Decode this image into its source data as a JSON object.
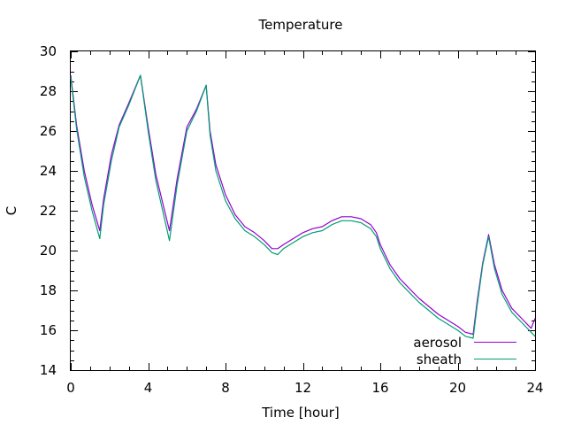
{
  "chart_data": {
    "type": "line",
    "title": "Temperature",
    "xlabel": "Time [hour]",
    "ylabel": "C",
    "xlim": [
      0,
      24
    ],
    "ylim": [
      14,
      30
    ],
    "xticks": [
      0,
      4,
      8,
      12,
      16,
      20,
      24
    ],
    "yticks": [
      14,
      16,
      18,
      20,
      22,
      24,
      26,
      28,
      30
    ],
    "grid": false,
    "legend_position": "bottom-right",
    "series": [
      {
        "name": "aerosol",
        "color": "#9400d3",
        "x": [
          0,
          0.3,
          0.7,
          1.1,
          1.5,
          1.7,
          2.1,
          2.5,
          3.0,
          3.6,
          4.0,
          4.4,
          4.8,
          5.1,
          5.5,
          6.0,
          6.5,
          7.0,
          7.2,
          7.5,
          8.0,
          8.5,
          9.0,
          9.5,
          10.0,
          10.4,
          10.7,
          11.0,
          11.5,
          12.0,
          12.5,
          13.0,
          13.5,
          14.0,
          14.5,
          15.0,
          15.5,
          15.8,
          16.0,
          16.5,
          17.0,
          17.5,
          18.0,
          18.5,
          19.0,
          19.5,
          20.0,
          20.4,
          20.8,
          21.0,
          21.3,
          21.6,
          21.9,
          22.3,
          22.8,
          23.3,
          23.8,
          24.0
        ],
        "y": [
          28.8,
          26.3,
          24.0,
          22.3,
          21.0,
          22.6,
          24.8,
          26.3,
          27.4,
          28.8,
          26.2,
          23.8,
          22.2,
          21.0,
          23.6,
          26.2,
          27.1,
          28.3,
          26.0,
          24.3,
          22.8,
          21.8,
          21.2,
          20.9,
          20.5,
          20.1,
          20.1,
          20.3,
          20.6,
          20.9,
          21.1,
          21.2,
          21.5,
          21.7,
          21.7,
          21.6,
          21.3,
          20.9,
          20.3,
          19.3,
          18.6,
          18.1,
          17.6,
          17.2,
          16.8,
          16.5,
          16.2,
          15.9,
          15.8,
          17.4,
          19.4,
          20.8,
          19.3,
          18.0,
          17.1,
          16.6,
          16.1,
          16.6
        ]
      },
      {
        "name": "sheath",
        "color": "#009e73",
        "x": [
          0,
          0.3,
          0.7,
          1.1,
          1.5,
          1.7,
          2.1,
          2.5,
          3.0,
          3.6,
          4.0,
          4.4,
          4.8,
          5.1,
          5.5,
          6.0,
          6.5,
          7.0,
          7.2,
          7.5,
          8.0,
          8.5,
          9.0,
          9.5,
          10.0,
          10.4,
          10.7,
          11.0,
          11.5,
          12.0,
          12.5,
          13.0,
          13.5,
          14.0,
          14.5,
          15.0,
          15.5,
          15.8,
          16.0,
          16.5,
          17.0,
          17.5,
          18.0,
          18.5,
          19.0,
          19.5,
          20.0,
          20.4,
          20.8,
          21.0,
          21.3,
          21.6,
          21.9,
          22.3,
          22.8,
          23.3,
          23.8,
          24.0
        ],
        "y": [
          28.7,
          26.1,
          23.7,
          22.0,
          20.6,
          22.3,
          24.5,
          26.2,
          27.3,
          28.8,
          26.0,
          23.5,
          21.8,
          20.5,
          23.3,
          26.0,
          27.0,
          28.3,
          25.8,
          24.0,
          22.5,
          21.6,
          21.0,
          20.7,
          20.3,
          19.9,
          19.8,
          20.1,
          20.4,
          20.7,
          20.9,
          21.0,
          21.3,
          21.5,
          21.5,
          21.4,
          21.1,
          20.7,
          20.1,
          19.1,
          18.4,
          17.9,
          17.4,
          17.0,
          16.6,
          16.3,
          16.0,
          15.7,
          15.6,
          17.2,
          19.3,
          20.7,
          19.1,
          17.8,
          16.9,
          16.4,
          15.9,
          15.7
        ]
      }
    ]
  }
}
